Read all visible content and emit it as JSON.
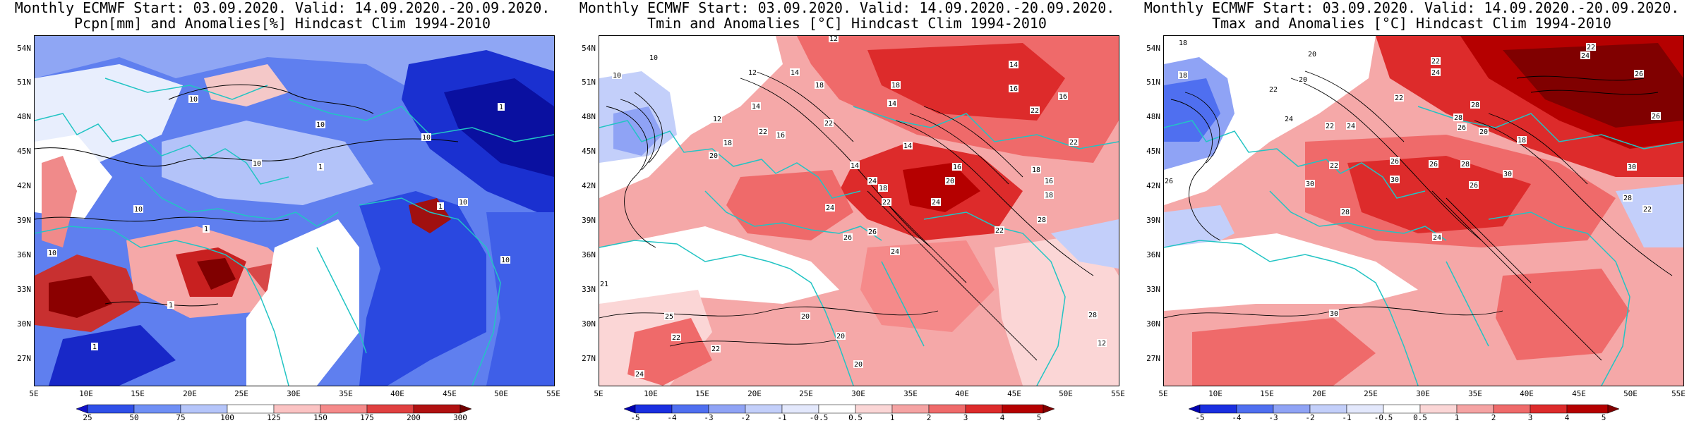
{
  "panels": [
    {
      "title_line1": "Monthly ECMWF Start: 03.09.2020. Valid: 14.09.2020.-20.09.2020.",
      "title_line2": "Pcpn[mm] and Anomalies[%] Hindcast Clim 1994-2010",
      "colorbar_labels": [
        "25",
        "50",
        "75",
        "100",
        "125",
        "150",
        "175",
        "200",
        "300"
      ],
      "colorbar_colors": [
        "#1010c8",
        "#2f4fe8",
        "#6f8ff5",
        "#b5c5fa",
        "#ffffff",
        "#fbc3c3",
        "#f58a8a",
        "#e04040",
        "#b01010",
        "#700000"
      ],
      "contour_labels": [
        "10",
        "10",
        "10",
        "10",
        "10",
        "10",
        "1",
        "1",
        "1",
        "1",
        "10",
        "1",
        "1",
        "10"
      ]
    },
    {
      "title_line1": "Monthly ECMWF Start: 03.09.2020. Valid: 14.09.2020.-20.09.2020.",
      "title_line2": "Tmin and Anomalies [°C] Hindcast Clim 1994-2010",
      "colorbar_labels": [
        "-5",
        "-4",
        "-3",
        "-2",
        "-1",
        "-0.5",
        "0.5",
        "1",
        "2",
        "3",
        "4",
        "5"
      ],
      "colorbar_colors": [
        "#0000b0",
        "#1a2fe0",
        "#4f6ff0",
        "#8fa3f5",
        "#c3cffa",
        "#e3e8fc",
        "#ffffff",
        "#fbd6d6",
        "#f5a3a3",
        "#ef6a6a",
        "#dd2b2b",
        "#b50000",
        "#800000"
      ],
      "contour_labels": [
        "12",
        "10",
        "10",
        "12",
        "14",
        "14",
        "16",
        "18",
        "14",
        "12",
        "14",
        "16",
        "18",
        "20",
        "22",
        "22",
        "14",
        "18",
        "22",
        "24",
        "18",
        "20",
        "22",
        "24",
        "26",
        "28",
        "12",
        "14",
        "16",
        "18",
        "22",
        "24",
        "26",
        "16",
        "18",
        "20",
        "22",
        "20",
        "24",
        "28",
        "16",
        "25",
        "22",
        "21",
        "22",
        "24",
        "20"
      ]
    },
    {
      "title_line1": "Monthly ECMWF Start: 03.09.2020. Valid: 14.09.2020.-20.09.2020.",
      "title_line2": "Tmax and Anomalies [°C] Hindcast Clim 1994-2010",
      "colorbar_labels": [
        "-5",
        "-4",
        "-3",
        "-2",
        "-1",
        "-0.5",
        "0.5",
        "1",
        "2",
        "3",
        "4",
        "5"
      ],
      "colorbar_colors": [
        "#0000b0",
        "#1a2fe0",
        "#4f6ff0",
        "#8fa3f5",
        "#c3cffa",
        "#e3e8fc",
        "#ffffff",
        "#fbd6d6",
        "#f5a3a3",
        "#ef6a6a",
        "#dd2b2b",
        "#b50000",
        "#800000"
      ],
      "contour_labels": [
        "18",
        "20",
        "22",
        "24",
        "22",
        "26",
        "18",
        "20",
        "24",
        "22",
        "28",
        "22",
        "20",
        "26",
        "28",
        "24",
        "26",
        "22",
        "24",
        "26",
        "30",
        "22",
        "18",
        "26",
        "28",
        "30",
        "28",
        "30",
        "26",
        "24",
        "30",
        "28",
        "26",
        "30",
        "22"
      ]
    }
  ],
  "lat_labels": [
    "54N",
    "51N",
    "48N",
    "45N",
    "42N",
    "39N",
    "36N",
    "33N",
    "30N",
    "27N"
  ],
  "lon_labels": [
    "5E",
    "10E",
    "15E",
    "20E",
    "25E",
    "30E",
    "35E",
    "40E",
    "45E",
    "50E",
    "55E"
  ],
  "colors": {
    "coast": "#22c4c4",
    "contour": "#000000"
  }
}
